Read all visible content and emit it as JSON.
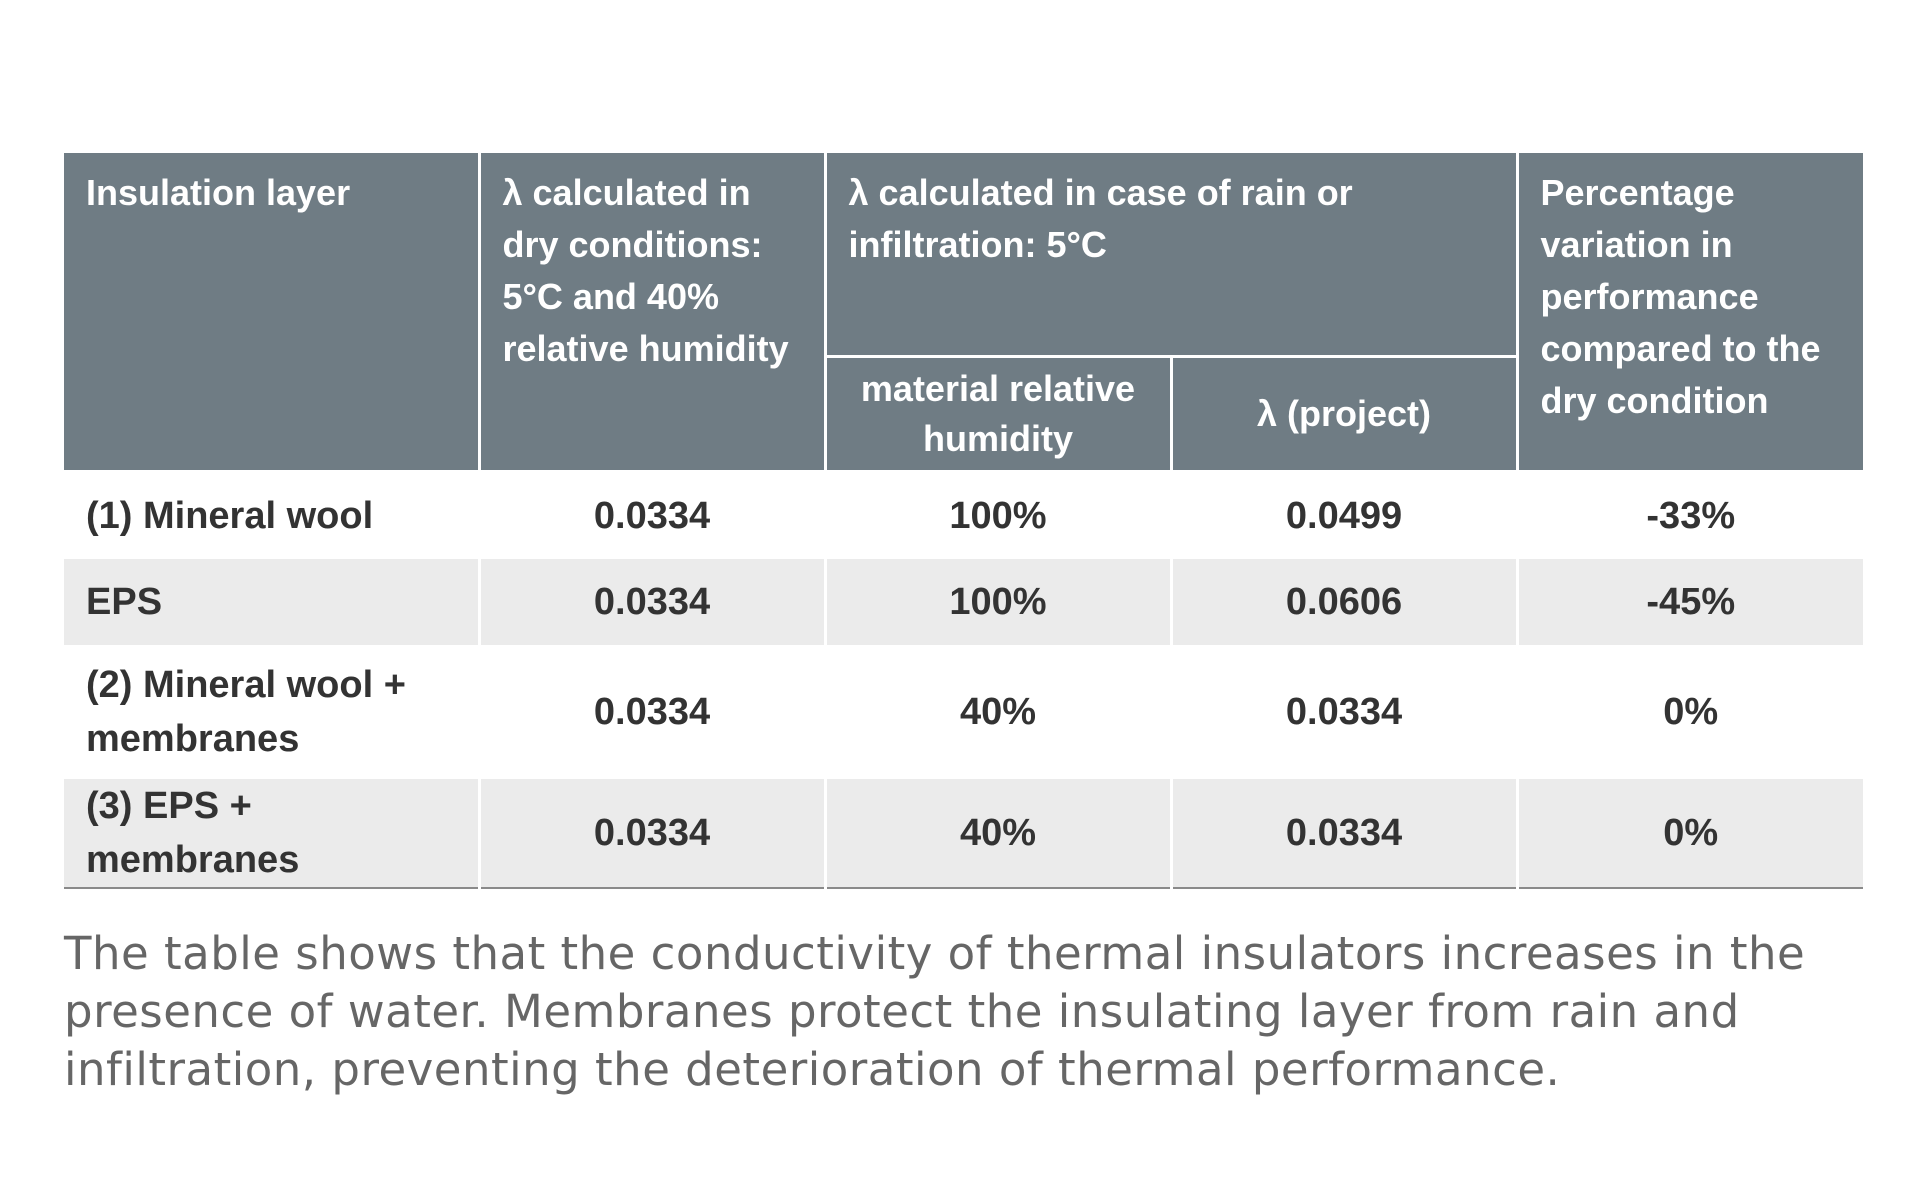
{
  "table": {
    "headers": {
      "insulation_layer": "Insulation layer",
      "lambda_dry": "λ calculated in dry conditions: 5°C and 40% relative humidity",
      "lambda_rain": "λ calculated in case of rain or infiltration: 5°C",
      "material_relative_humidity": "material relative humidity",
      "lambda_project": "λ (project)",
      "percentage_variation": "Percentage variation in performance compared to the dry condition"
    },
    "rows": [
      {
        "layer": "(1) Mineral wool",
        "lambda_dry": "0.0334",
        "humidity": "100%",
        "lambda_project": "0.0499",
        "variation": "-33%"
      },
      {
        "layer": "EPS",
        "lambda_dry": "0.0334",
        "humidity": "100%",
        "lambda_project": "0.0606",
        "variation": "-45%"
      },
      {
        "layer": "(2) Mineral wool + membranes",
        "lambda_dry": "0.0334",
        "humidity": "40%",
        "lambda_project": "0.0334",
        "variation": "0%"
      },
      {
        "layer": "(3) EPS + membranes",
        "lambda_dry": "0.0334",
        "humidity": "40%",
        "lambda_project": "0.0334",
        "variation": "0%"
      }
    ]
  },
  "caption": "The table shows that the conductivity of thermal insulators increases in the presence of water. Membranes protect the insulating layer from rain and infiltration, preventing the deterioration of thermal performance.",
  "colors": {
    "header_bg": "#6f7c84",
    "header_text": "#ffffff",
    "row_alt_bg": "#ebebeb",
    "body_text": "#333333",
    "caption_text": "#666666"
  }
}
